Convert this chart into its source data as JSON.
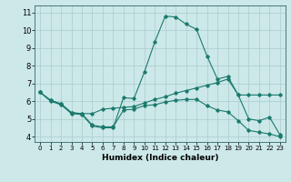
{
  "xlabel": "Humidex (Indice chaleur)",
  "bg_color": "#cce8e8",
  "grid_color": "#aacccc",
  "line_color": "#1a7a6e",
  "xlim": [
    -0.5,
    23.5
  ],
  "ylim": [
    3.7,
    11.4
  ],
  "yticks": [
    4,
    5,
    6,
    7,
    8,
    9,
    10,
    11
  ],
  "xticks": [
    0,
    1,
    2,
    3,
    4,
    5,
    6,
    7,
    8,
    9,
    10,
    11,
    12,
    13,
    14,
    15,
    16,
    17,
    18,
    19,
    20,
    21,
    22,
    23
  ],
  "series1_x": [
    0,
    1,
    2,
    3,
    4,
    5,
    6,
    7,
    8,
    9,
    10,
    11,
    12,
    13,
    14,
    15,
    16,
    17,
    18,
    19,
    20,
    21,
    22,
    23
  ],
  "series1_y": [
    6.5,
    6.0,
    5.8,
    5.3,
    5.25,
    4.6,
    4.5,
    4.5,
    6.2,
    6.15,
    7.65,
    9.35,
    10.8,
    10.75,
    10.35,
    10.05,
    8.55,
    7.25,
    7.4,
    6.35,
    5.0,
    4.9,
    5.1,
    4.1
  ],
  "series2_x": [
    0,
    1,
    2,
    3,
    4,
    5,
    6,
    7,
    8,
    9,
    10,
    11,
    12,
    13,
    14,
    15,
    16,
    17,
    18,
    19,
    20,
    21,
    22,
    23
  ],
  "series2_y": [
    6.5,
    6.05,
    5.85,
    5.35,
    5.3,
    5.3,
    5.55,
    5.6,
    5.65,
    5.7,
    5.9,
    6.1,
    6.25,
    6.45,
    6.6,
    6.75,
    6.9,
    7.05,
    7.25,
    6.35,
    6.35,
    6.35,
    6.35,
    6.35
  ],
  "series3_x": [
    0,
    1,
    2,
    3,
    4,
    5,
    6,
    7,
    8,
    9,
    10,
    11,
    12,
    13,
    14,
    15,
    16,
    17,
    18,
    19,
    20,
    21,
    22,
    23
  ],
  "series3_y": [
    6.5,
    6.05,
    5.85,
    5.35,
    5.3,
    4.65,
    4.55,
    4.55,
    5.5,
    5.55,
    5.75,
    5.8,
    5.95,
    6.05,
    6.1,
    6.1,
    5.75,
    5.5,
    5.4,
    4.9,
    4.35,
    4.25,
    4.15,
    4.0
  ]
}
